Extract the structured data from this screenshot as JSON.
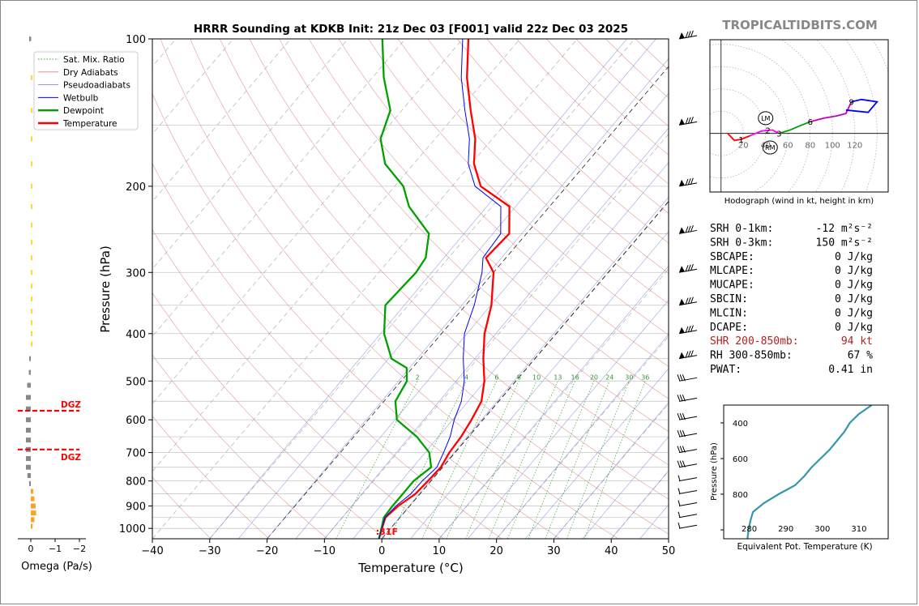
{
  "header": {
    "title": "HRRR Sounding at KDKB Init: 21z Dec 03 [F001] valid 22z Dec 03 2025",
    "watermark": "TROPICALTIDBITS.COM"
  },
  "skewt": {
    "xlabel": "Temperature (°C)",
    "ylabel": "Pressure (hPa)",
    "xlim": [
      -40,
      50
    ],
    "ylim": [
      1050,
      100
    ],
    "x_ticks": [
      "−40",
      "−30",
      "−20",
      "−10",
      "0",
      "10",
      "20",
      "30",
      "40",
      "50"
    ],
    "p_ticks": [
      "100",
      "200",
      "300",
      "400",
      "500",
      "600",
      "700",
      "800",
      "900",
      "1000"
    ],
    "surface_temp_label": "31F",
    "legend": [
      "Sat. Mix. Ratio",
      "Dry Adiabats",
      "Pseudoadiabats",
      "Wetbulb",
      "Dewpoint",
      "Temperature"
    ],
    "mixing_ratio_labels": [
      "2",
      "4",
      "6",
      "8",
      "10",
      "13",
      "16",
      "20",
      "24",
      "30",
      "36"
    ]
  },
  "chart_data": [
    {
      "type": "line",
      "title": "HRRR Sounding at KDKB Init: 21z Dec 03 [F001] valid 22z Dec 03 2025",
      "xlabel": "Temperature (°C)",
      "ylabel": "Pressure (hPa)",
      "x_range": [
        -40,
        50
      ],
      "y_range": [
        1050,
        100
      ],
      "y_scale": "log",
      "series": [
        {
          "name": "Temperature",
          "color": "#ff0000",
          "points": [
            [
              1050,
              -0.5
            ],
            [
              1000,
              -1.5
            ],
            [
              950,
              -2.5
            ],
            [
              900,
              -2.0
            ],
            [
              850,
              -0.8
            ],
            [
              800,
              -0.5
            ],
            [
              750,
              -0.3
            ],
            [
              700,
              -1.0
            ],
            [
              650,
              -1.3
            ],
            [
              600,
              -2.0
            ],
            [
              550,
              -3.0
            ],
            [
              500,
              -5.5
            ],
            [
              450,
              -9.0
            ],
            [
              400,
              -12.5
            ],
            [
              350,
              -15.5
            ],
            [
              300,
              -20.0
            ],
            [
              280,
              -23.5
            ],
            [
              250,
              -23.0
            ],
            [
              220,
              -27.0
            ],
            [
              200,
              -35.0
            ],
            [
              180,
              -39.5
            ],
            [
              160,
              -43.0
            ],
            [
              140,
              -48.0
            ],
            [
              120,
              -53.5
            ],
            [
              100,
              -59.0
            ]
          ]
        },
        {
          "name": "Dewpoint",
          "color": "#00a000",
          "points": [
            [
              1050,
              -0.5
            ],
            [
              1000,
              -1.6
            ],
            [
              950,
              -2.8
            ],
            [
              900,
              -3.0
            ],
            [
              850,
              -3.0
            ],
            [
              800,
              -3.0
            ],
            [
              750,
              -2.0
            ],
            [
              700,
              -4.5
            ],
            [
              650,
              -9.0
            ],
            [
              600,
              -15.0
            ],
            [
              550,
              -18.0
            ],
            [
              500,
              -19.0
            ],
            [
              470,
              -21.0
            ],
            [
              450,
              -25.0
            ],
            [
              400,
              -30.0
            ],
            [
              350,
              -34.0
            ],
            [
              300,
              -33.5
            ],
            [
              280,
              -34.0
            ],
            [
              250,
              -37.0
            ],
            [
              220,
              -44.5
            ],
            [
              200,
              -48.5
            ],
            [
              180,
              -55.0
            ],
            [
              160,
              -59.5
            ],
            [
              140,
              -62.0
            ],
            [
              120,
              -68.0
            ],
            [
              100,
              -74.0
            ]
          ]
        },
        {
          "name": "Wetbulb",
          "color": "#0000ff",
          "points": [
            [
              1050,
              -0.5
            ],
            [
              1000,
              -1.55
            ],
            [
              950,
              -2.6
            ],
            [
              900,
              -2.4
            ],
            [
              850,
              -1.6
            ],
            [
              800,
              -1.5
            ],
            [
              750,
              -1.0
            ],
            [
              700,
              -2.0
            ],
            [
              650,
              -3.2
            ],
            [
              600,
              -5.0
            ],
            [
              550,
              -6.5
            ],
            [
              500,
              -9.0
            ],
            [
              450,
              -12.5
            ],
            [
              400,
              -16.0
            ],
            [
              350,
              -18.5
            ],
            [
              300,
              -22.0
            ],
            [
              280,
              -24.0
            ],
            [
              250,
              -24.5
            ],
            [
              220,
              -28.5
            ],
            [
              200,
              -36.0
            ],
            [
              180,
              -40.5
            ],
            [
              160,
              -44.0
            ],
            [
              140,
              -49.0
            ],
            [
              120,
              -54.5
            ],
            [
              100,
              -60.0
            ]
          ]
        }
      ]
    },
    {
      "type": "line",
      "title": "Hodograph (wind in kt, height in km)",
      "x_range": [
        -10,
        150
      ],
      "y_range": [
        -50,
        80
      ],
      "range_ring_labels": [
        "20",
        "40",
        "60",
        "80",
        "100",
        "120"
      ],
      "height_labels": [
        {
          "km": "1",
          "u": 18,
          "v": -5
        },
        {
          "km": "2",
          "u": 42,
          "v": 3
        },
        {
          "km": "3",
          "u": 52,
          "v": 0
        },
        {
          "km": "6",
          "u": 80,
          "v": 10
        },
        {
          "km": "9",
          "u": 117,
          "v": 27
        }
      ],
      "storm_motion": [
        {
          "label": "LM",
          "u": 40,
          "v": 13
        },
        {
          "label": "RM",
          "u": 44,
          "v": -12
        }
      ],
      "segments": [
        {
          "color": "#ff0000",
          "points": [
            [
              6,
              0
            ],
            [
              12,
              -6
            ],
            [
              18,
              -5
            ],
            [
              26,
              -2
            ]
          ]
        },
        {
          "color": "#ff00ff",
          "points": [
            [
              26,
              -2
            ],
            [
              36,
              2
            ],
            [
              46,
              3
            ],
            [
              52,
              0
            ]
          ]
        },
        {
          "color": "#00a000",
          "points": [
            [
              52,
              0
            ],
            [
              62,
              3
            ],
            [
              72,
              7
            ],
            [
              80,
              10
            ]
          ]
        },
        {
          "color": "#c000c0",
          "points": [
            [
              80,
              10
            ],
            [
              92,
              13
            ],
            [
              104,
              15
            ],
            [
              112,
              17
            ],
            [
              117,
              27
            ]
          ]
        },
        {
          "color": "#0000ff",
          "points": [
            [
              112,
              20
            ],
            [
              132,
              18
            ],
            [
              140,
              27
            ],
            [
              126,
              29
            ],
            [
              117,
              27
            ]
          ]
        }
      ]
    },
    {
      "type": "line",
      "title": "",
      "xlabel": "Equivalent Pot. Temperature (K)",
      "ylabel": "Pressure (hPa)",
      "x_range": [
        273,
        318
      ],
      "y_range": [
        1050,
        300
      ],
      "x_ticks": [
        "280",
        "290",
        "300",
        "310"
      ],
      "y_ticks": [
        "400",
        "600",
        "800"
      ],
      "series": [
        {
          "name": "",
          "color": "#3399aa",
          "points": [
            [
              1050,
              279.5
            ],
            [
              1000,
              279.8
            ],
            [
              950,
              280.3
            ],
            [
              900,
              281.0
            ],
            [
              850,
              284.0
            ],
            [
              800,
              288.0
            ],
            [
              750,
              292.5
            ],
            [
              700,
              295.0
            ],
            [
              650,
              297.0
            ],
            [
              600,
              299.5
            ],
            [
              550,
              302.0
            ],
            [
              500,
              304.0
            ],
            [
              450,
              306.0
            ],
            [
              400,
              307.5
            ],
            [
              350,
              310.0
            ],
            [
              300,
              313.5
            ]
          ]
        }
      ]
    },
    {
      "type": "bar",
      "xlabel": "Omega (Pa/s)",
      "x_ticks": [
        "0",
        "−1",
        "−2"
      ],
      "dgz_label": "DGZ",
      "dgz_levels_hpa": [
        575,
        690
      ],
      "levels_hpa": [
        100,
        120,
        140,
        160,
        180,
        200,
        220,
        240,
        260,
        280,
        300,
        320,
        340,
        360,
        380,
        400,
        420,
        450,
        480,
        510,
        540,
        570,
        600,
        630,
        660,
        690,
        720,
        750,
        780,
        810,
        840,
        870,
        900,
        930,
        960,
        990
      ],
      "values": [
        -0.02,
        0.03,
        0.02,
        0.02,
        0.02,
        0.03,
        0.03,
        0.03,
        0.04,
        0.04,
        0.04,
        0.05,
        0.05,
        0.06,
        0.06,
        0.06,
        0.05,
        -0.05,
        -0.08,
        -0.15,
        -0.2,
        -0.2,
        -0.2,
        -0.2,
        -0.2,
        -0.2,
        -0.2,
        -0.2,
        -0.14,
        -0.06,
        0.1,
        0.15,
        0.2,
        0.22,
        0.15,
        0.05
      ]
    }
  ],
  "params": {
    "rows": [
      {
        "label": "SRH 0-1km:",
        "value": "-12 m²s⁻²",
        "color": "#000000"
      },
      {
        "label": "SRH 0-3km:",
        "value": "150 m²s⁻²",
        "color": "#000000"
      },
      {
        "label": "SBCAPE:",
        "value": "0 J/kg",
        "color": "#000000"
      },
      {
        "label": "MLCAPE:",
        "value": "0 J/kg",
        "color": "#000000"
      },
      {
        "label": "MUCAPE:",
        "value": "0 J/kg",
        "color": "#000000"
      },
      {
        "label": "SBCIN:",
        "value": "0 J/kg",
        "color": "#000000"
      },
      {
        "label": "MLCIN:",
        "value": "0 J/kg",
        "color": "#000000"
      },
      {
        "label": "DCAPE:",
        "value": "0 J/kg",
        "color": "#000000"
      },
      {
        "label": "SHR 200-850mb:",
        "value": "94 kt",
        "color": "#b22222"
      },
      {
        "label": "RH 300-850mb:",
        "value": "67 %",
        "color": "#000000"
      },
      {
        "label": "PWAT:",
        "value": "0.41 in",
        "color": "#000000"
      }
    ]
  }
}
